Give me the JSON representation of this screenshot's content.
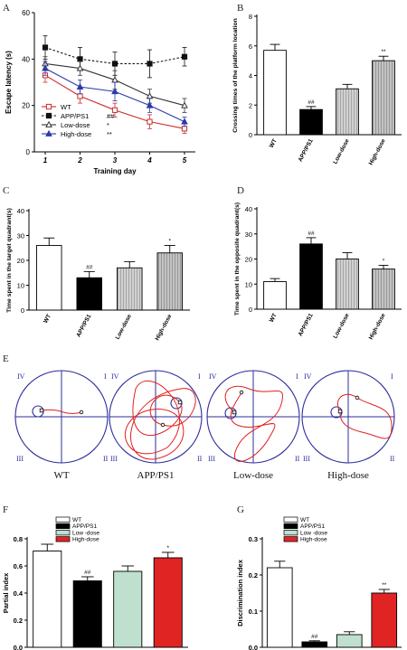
{
  "chart_data": [
    {
      "panel": "A",
      "type": "line",
      "xlabel": "Training day",
      "ylabel": "Escape latency (s)",
      "x": [
        "1",
        "2",
        "3",
        "4",
        "5"
      ],
      "ylim": [
        0,
        60
      ],
      "yticks": [
        "0",
        "20",
        "40",
        "60"
      ],
      "legend": "bottom-left",
      "series": [
        {
          "name": "WT",
          "values": [
            33,
            24,
            18,
            13,
            10
          ],
          "errors": [
            3,
            3,
            3,
            3,
            2
          ],
          "color": "#cc2b2b",
          "marker": "square",
          "dash": "solid",
          "sig": ""
        },
        {
          "name": "APP/PS1",
          "values": [
            45,
            40,
            38,
            38,
            41
          ],
          "errors": [
            5,
            5,
            5,
            6,
            4
          ],
          "color": "#111111",
          "marker": "filled-square",
          "dash": "dotted",
          "sig": "##"
        },
        {
          "name": "Low-dose",
          "values": [
            38,
            36,
            31,
            24,
            20
          ],
          "errors": [
            3,
            3,
            4,
            3,
            3
          ],
          "color": "#333333",
          "marker": "triangle",
          "dash": "solid",
          "sig": "*"
        },
        {
          "name": "High-dose",
          "values": [
            36,
            28,
            26,
            20,
            13
          ],
          "errors": [
            3,
            3,
            4,
            3,
            2
          ],
          "color": "#2a3aa8",
          "marker": "filled-triangle",
          "dash": "solid",
          "sig": "**"
        }
      ]
    },
    {
      "panel": "B",
      "type": "bar",
      "ylabel": "Crossing times of the platform location",
      "categories": [
        "WT",
        "APP/PS1",
        "Low-dose",
        "High-dose"
      ],
      "values": [
        5.7,
        1.7,
        3.1,
        5.0
      ],
      "errors": [
        0.4,
        0.2,
        0.3,
        0.3
      ],
      "annotations": [
        "",
        "##",
        "",
        "**"
      ],
      "ylim": [
        0,
        8
      ],
      "yticks": [
        "0",
        "2",
        "4",
        "6",
        "8"
      ]
    },
    {
      "panel": "C",
      "type": "bar",
      "ylabel": "Time spent in the target quadrant(s)",
      "categories": [
        "WT",
        "APP/PS1",
        "Low-dose",
        "High-dose"
      ],
      "values": [
        26,
        13,
        17,
        23
      ],
      "errors": [
        3,
        2.5,
        2.5,
        3
      ],
      "annotations": [
        "",
        "##",
        "",
        "*"
      ],
      "ylim": [
        0,
        40
      ],
      "yticks": [
        "0",
        "10",
        "20",
        "30",
        "40"
      ]
    },
    {
      "panel": "D",
      "type": "bar",
      "ylabel": "Time spent in the opposite quadrant(s)",
      "categories": [
        "WT",
        "APP/PS1",
        "Low-dose",
        "High-dose"
      ],
      "values": [
        11,
        26,
        20,
        16
      ],
      "errors": [
        1.2,
        2.5,
        2.5,
        1.5
      ],
      "annotations": [
        "",
        "##",
        "",
        "*"
      ],
      "ylim": [
        0,
        40
      ],
      "yticks": [
        "0",
        "10",
        "20",
        "30",
        "40"
      ]
    },
    {
      "panel": "F",
      "type": "bar",
      "ylabel": "Partial index",
      "categories": [
        "WT",
        "APP/PS1",
        "Low-dose",
        "High-dose"
      ],
      "values": [
        0.71,
        0.49,
        0.56,
        0.66
      ],
      "errors": [
        0.05,
        0.03,
        0.04,
        0.04
      ],
      "annotations": [
        "",
        "##",
        "",
        "*"
      ],
      "ylim": [
        0,
        0.8
      ],
      "yticks": [
        "0.0",
        "0.2",
        "0.4",
        "0.6",
        "0.8"
      ],
      "legend": "top",
      "legend_labels": [
        "WT",
        "APP/PS1",
        "Low -dose",
        "High-dose"
      ]
    },
    {
      "panel": "G",
      "type": "bar",
      "ylabel": "Discrimination index",
      "categories": [
        "WT",
        "APP/PS1",
        "Low-dose",
        "High-dose"
      ],
      "values": [
        0.22,
        0.015,
        0.035,
        0.15
      ],
      "errors": [
        0.018,
        0.003,
        0.008,
        0.01
      ],
      "annotations": [
        "",
        "##",
        "",
        "**"
      ],
      "ylim": [
        0,
        0.3
      ],
      "yticks": [
        "0.0",
        "0.1",
        "0.2",
        "0.3"
      ],
      "legend": "top",
      "legend_labels": [
        "WT",
        "APP/PS1",
        "Low -dose",
        "High-dose"
      ]
    }
  ],
  "panel_e": {
    "letter": "E",
    "labels": [
      "WT",
      "APP/PS1",
      "Low-dose",
      "High-dose"
    ],
    "quadrants": [
      "IV",
      "I",
      "III",
      "II"
    ]
  }
}
